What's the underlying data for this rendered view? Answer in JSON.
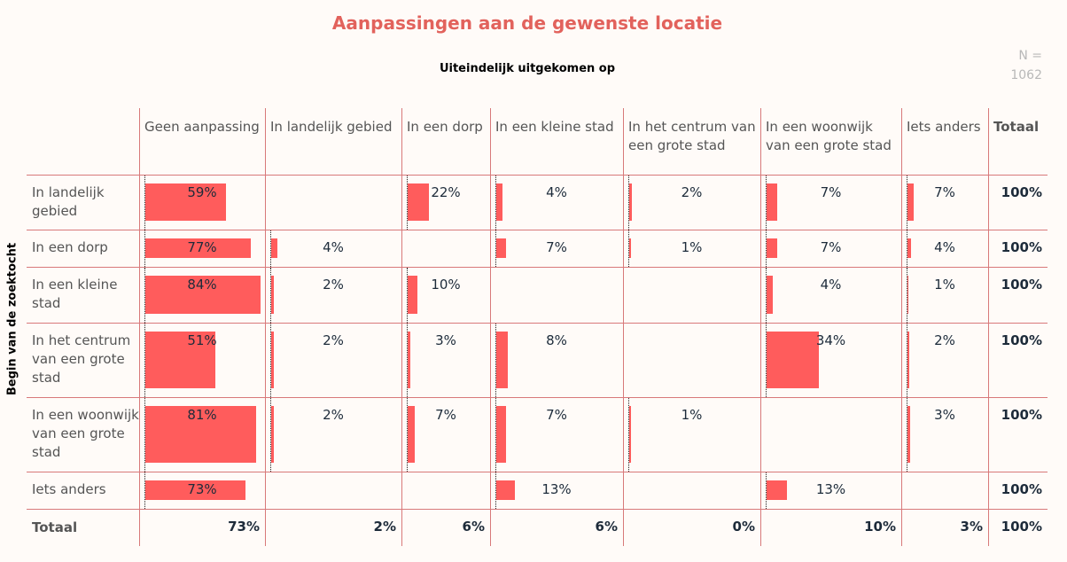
{
  "chart_data": {
    "type": "table",
    "title": "Aanpassingen aan de gewenste locatie",
    "subtitle": "Uiteindelijk uitgekomen op",
    "n_label": "N =",
    "n_value": "1062",
    "row_axis_label": "Begin van de zoektocht",
    "bar_color": "#ff5c5c",
    "columns": [
      "Geen aanpassing",
      "In landelijk gebied",
      "In een dorp",
      "In een kleine stad",
      "In het centrum van een grote stad",
      "In een woonwijk van een grote stad",
      "Iets anders",
      "Totaal"
    ],
    "rows": [
      {
        "label": "In landelijk gebied",
        "values": [
          59,
          null,
          22,
          4,
          2,
          7,
          7
        ],
        "total": "100%"
      },
      {
        "label": "In een dorp",
        "values": [
          77,
          4,
          null,
          7,
          1,
          7,
          4
        ],
        "total": "100%"
      },
      {
        "label": "In een kleine stad",
        "values": [
          84,
          2,
          10,
          null,
          null,
          4,
          1
        ],
        "total": "100%"
      },
      {
        "label": "In het centrum van een grote stad",
        "values": [
          51,
          2,
          3,
          8,
          null,
          34,
          2
        ],
        "total": "100%"
      },
      {
        "label": "In een woonwijk van een grote stad",
        "values": [
          81,
          2,
          7,
          7,
          1,
          null,
          3
        ],
        "total": "100%"
      },
      {
        "label": "Iets anders",
        "values": [
          73,
          null,
          null,
          13,
          null,
          13,
          null
        ],
        "total": "100%"
      }
    ],
    "total_row": {
      "label": "Totaal",
      "values": [
        "73%",
        "2%",
        "6%",
        "6%",
        "0%",
        "10%",
        "3%",
        "100%"
      ]
    }
  }
}
